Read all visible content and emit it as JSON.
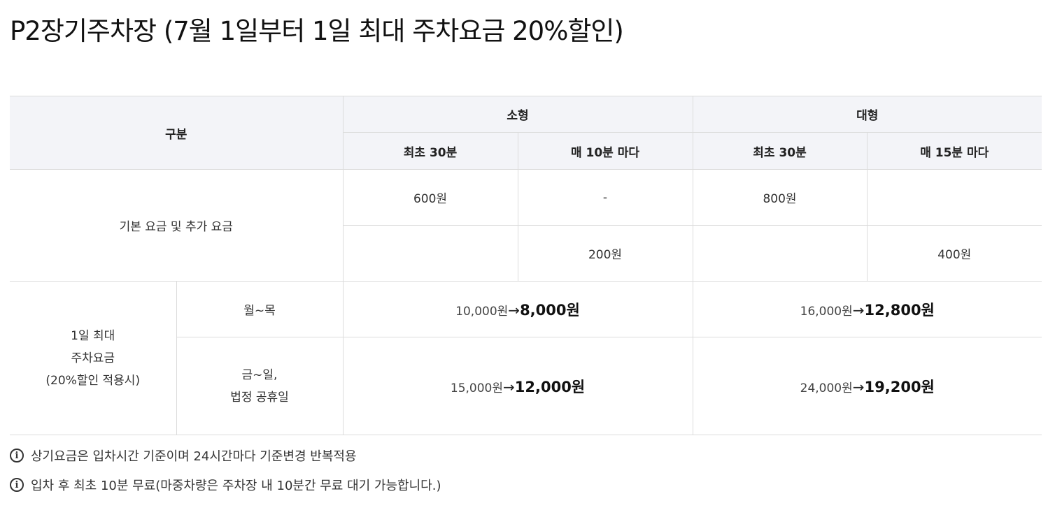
{
  "title": "P2장기주차장 (7월 1일부터 1일 최대 주차요금 20%할인)",
  "table": {
    "header": {
      "category": "구분",
      "small": "소형",
      "large": "대형",
      "small_first": "최초 30분",
      "small_every": "매 10분 마다",
      "large_first": "최초 30분",
      "large_every": "매 15분 마다"
    },
    "basic": {
      "label": "기본 요금 및 추가 요금",
      "small_first": "600원",
      "small_every_row1": "-",
      "large_first": "800원",
      "small_every_row2": "200원",
      "large_every_row2": "400원"
    },
    "daily_max": {
      "label_line1": "1일 최대",
      "label_line2": "주차요금",
      "label_line3": "(20%할인 적용시)",
      "weekday": {
        "label": "월~목",
        "small_old": "10,000원",
        "small_new": "8,000원",
        "large_old": "16,000원",
        "large_new": "12,800원"
      },
      "weekend": {
        "label_line1": "금~일,",
        "label_line2": "법정 공휴일",
        "small_old": "15,000원",
        "small_new": "12,000원",
        "large_old": "24,000원",
        "large_new": "19,200원"
      },
      "arrow": "→"
    }
  },
  "notes": [
    {
      "icon": "info-icon",
      "text": "상기요금은 입차시간 기준이며 24시간마다 기준변경 반복적용"
    },
    {
      "icon": "info-icon",
      "text": "입차 후 최초 10분  무료(마중차량은 주차장 내  10분간 무료 대기 가능합니다.)"
    }
  ]
}
